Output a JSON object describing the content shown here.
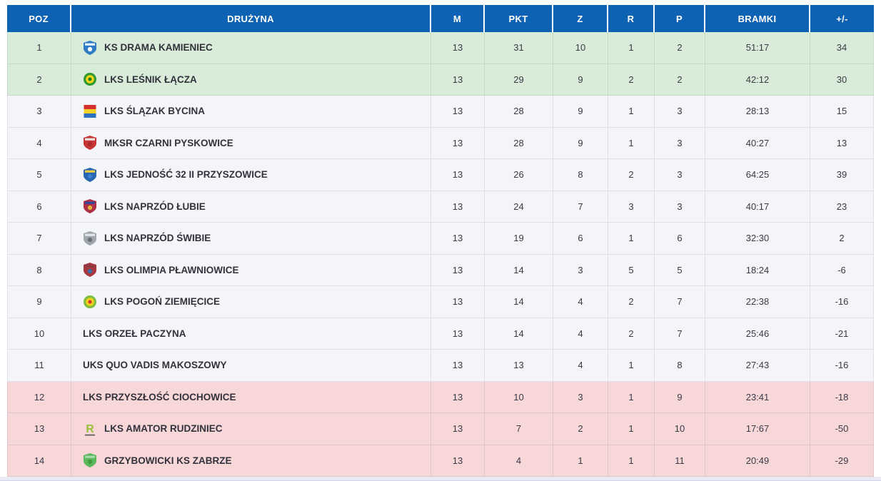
{
  "table": {
    "header_bg_color": "#0d62b4",
    "zone_colors": {
      "promotion": "#d9ecd9",
      "neutral": "#f4f5f9",
      "relegation": "#f8d7d9"
    },
    "columns": [
      {
        "key": "poz",
        "label": "POZ"
      },
      {
        "key": "team",
        "label": "DRUŻYNA"
      },
      {
        "key": "m",
        "label": "M"
      },
      {
        "key": "pkt",
        "label": "PKT"
      },
      {
        "key": "z",
        "label": "Z"
      },
      {
        "key": "r",
        "label": "R"
      },
      {
        "key": "p",
        "label": "P"
      },
      {
        "key": "bramki",
        "label": "BRAMKI"
      },
      {
        "key": "diff",
        "label": "+/-"
      }
    ],
    "rows": [
      {
        "poz": "1",
        "team": "KS DRAMA KAMIENIEC",
        "m": "13",
        "pkt": "31",
        "z": "10",
        "r": "1",
        "p": "2",
        "bramki": "51:17",
        "diff": "34",
        "zone": "promotion",
        "crest": {
          "icon": "team-crest-icon",
          "type": "shield",
          "colors": [
            "#2e7cc3",
            "#e8f1fa",
            "#ffffff"
          ]
        }
      },
      {
        "poz": "2",
        "team": "LKS LEŚNIK ŁĄCZA",
        "m": "13",
        "pkt": "29",
        "z": "9",
        "r": "2",
        "p": "2",
        "bramki": "42:12",
        "diff": "30",
        "zone": "promotion",
        "crest": {
          "icon": "team-crest-icon",
          "type": "circle",
          "colors": [
            "#2f9a32",
            "#f2d418",
            "#1e7d22"
          ]
        }
      },
      {
        "poz": "3",
        "team": "LKS ŚLĄZAK BYCINA",
        "m": "13",
        "pkt": "28",
        "z": "9",
        "r": "1",
        "p": "3",
        "bramki": "28:13",
        "diff": "15",
        "zone": "neutral",
        "crest": {
          "icon": "team-crest-icon",
          "type": "stripes",
          "colors": [
            "#d43030",
            "#f5d325",
            "#2f6fc0"
          ]
        }
      },
      {
        "poz": "4",
        "team": "MKSR CZARNI PYSKOWICE",
        "m": "13",
        "pkt": "28",
        "z": "9",
        "r": "1",
        "p": "3",
        "bramki": "40:27",
        "diff": "13",
        "zone": "neutral",
        "crest": {
          "icon": "team-crest-icon",
          "type": "shield",
          "colors": [
            "#c63434",
            "#e9e2df",
            "#a82a2a"
          ]
        }
      },
      {
        "poz": "5",
        "team": "LKS JEDNOŚĆ 32 II PRZYSZOWICE",
        "m": "13",
        "pkt": "26",
        "z": "8",
        "r": "2",
        "p": "3",
        "bramki": "64:25",
        "diff": "39",
        "zone": "neutral",
        "crest": {
          "icon": "team-crest-icon",
          "type": "shield",
          "colors": [
            "#2a66b0",
            "#f0c93d",
            "#3a7fd0"
          ]
        }
      },
      {
        "poz": "6",
        "team": "LKS NAPRZÓD ŁUBIE",
        "m": "13",
        "pkt": "24",
        "z": "7",
        "r": "3",
        "p": "3",
        "bramki": "40:17",
        "diff": "23",
        "zone": "neutral",
        "crest": {
          "icon": "team-crest-icon",
          "type": "shield",
          "colors": [
            "#b03046",
            "#31479c",
            "#e0b33c"
          ]
        }
      },
      {
        "poz": "7",
        "team": "LKS NAPRZÓD ŚWIBIE",
        "m": "13",
        "pkt": "19",
        "z": "6",
        "r": "1",
        "p": "6",
        "bramki": "32:30",
        "diff": "2",
        "zone": "neutral",
        "crest": {
          "icon": "team-crest-icon",
          "type": "shield",
          "colors": [
            "#9fa6ad",
            "#e4e7ea",
            "#6b7178"
          ]
        }
      },
      {
        "poz": "8",
        "team": "LKS OLIMPIA PŁAWNIOWICE",
        "m": "13",
        "pkt": "14",
        "z": "3",
        "r": "5",
        "p": "5",
        "bramki": "18:24",
        "diff": "-6",
        "zone": "neutral",
        "crest": {
          "icon": "team-crest-icon",
          "type": "shield",
          "colors": [
            "#a8383f",
            "#8c3a40",
            "#3c6ea8"
          ]
        }
      },
      {
        "poz": "9",
        "team": "LKS POGOŃ ZIEMIĘCICE",
        "m": "13",
        "pkt": "14",
        "z": "4",
        "r": "2",
        "p": "7",
        "bramki": "22:38",
        "diff": "-16",
        "zone": "neutral",
        "crest": {
          "icon": "team-crest-icon",
          "type": "circle",
          "colors": [
            "#7cbf3f",
            "#f4cf1e",
            "#d0372f"
          ]
        }
      },
      {
        "poz": "10",
        "team": "LKS ORZEŁ PACZYNA",
        "m": "13",
        "pkt": "14",
        "z": "4",
        "r": "2",
        "p": "7",
        "bramki": "25:46",
        "diff": "-21",
        "zone": "neutral",
        "crest": {
          "type": "none"
        }
      },
      {
        "poz": "11",
        "team": "UKS QUO VADIS MAKOSZOWY",
        "m": "13",
        "pkt": "13",
        "z": "4",
        "r": "1",
        "p": "8",
        "bramki": "27:43",
        "diff": "-16",
        "zone": "neutral",
        "crest": {
          "type": "none"
        }
      },
      {
        "poz": "12",
        "team": "LKS PRZYSZŁOŚĆ CIOCHOWICE",
        "m": "13",
        "pkt": "10",
        "z": "3",
        "r": "1",
        "p": "9",
        "bramki": "23:41",
        "diff": "-18",
        "zone": "relegation",
        "crest": {
          "type": "none"
        }
      },
      {
        "poz": "13",
        "team": "LKS AMATOR RUDZINIEC",
        "m": "13",
        "pkt": "7",
        "z": "2",
        "r": "1",
        "p": "10",
        "bramki": "17:67",
        "diff": "-50",
        "zone": "relegation",
        "crest": {
          "icon": "team-crest-icon",
          "type": "letters",
          "colors": [
            "#555555",
            "#9cbf3b"
          ],
          "text": "R"
        }
      },
      {
        "poz": "14",
        "team": "GRZYBOWICKI KS ZABRZE",
        "m": "13",
        "pkt": "4",
        "z": "1",
        "r": "1",
        "p": "11",
        "bramki": "20:49",
        "diff": "-29",
        "zone": "relegation",
        "crest": {
          "icon": "team-crest-icon",
          "type": "shield",
          "colors": [
            "#5cb85c",
            "#a8d9a8",
            "#3f9c3f"
          ]
        }
      }
    ]
  }
}
